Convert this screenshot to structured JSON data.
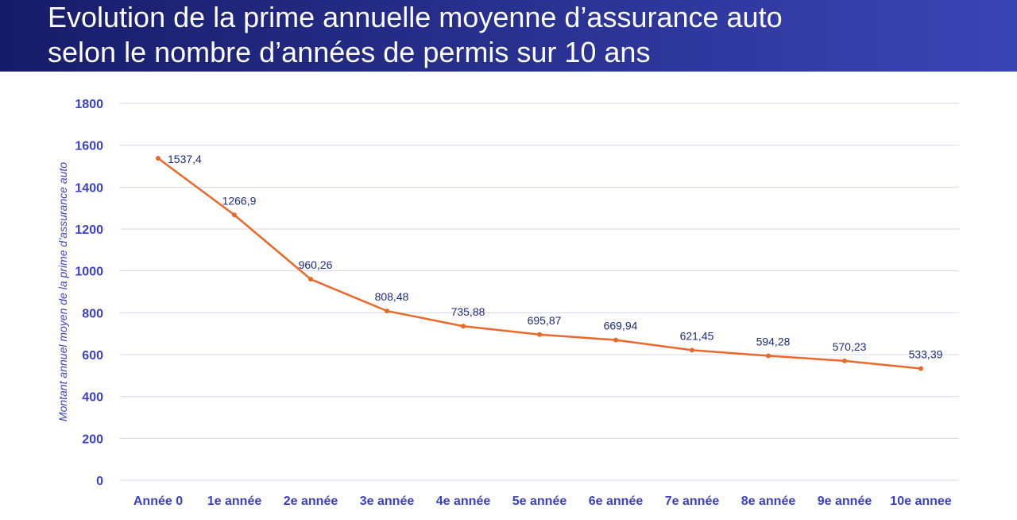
{
  "chart_data": {
    "type": "line",
    "title": [
      "Evolution de la prime annuelle moyenne d’assurance auto",
      "selon le nombre d’années de permis sur 10 ans"
    ],
    "y_label": "Montant annuel moyen de la prime d’assurance auto",
    "categories": [
      "Année 0",
      "1e année",
      "2e année",
      "3e année",
      "4e année",
      "5e année",
      "6e année",
      "7e année",
      "8e année",
      "9e année",
      "10e annee"
    ],
    "values": [
      1537.4,
      1266.9,
      960.26,
      808.48,
      735.88,
      695.87,
      669.94,
      621.45,
      594.28,
      570.23,
      533.39
    ],
    "value_labels": [
      "1537,4",
      "1266,9",
      "960,26",
      "808,48",
      "735,88",
      "695,87",
      "669,94",
      "621,45",
      "594,28",
      "570,23",
      "533,39"
    ],
    "color": "#e8692a",
    "ylim": [
      0,
      1800
    ],
    "yticks": [
      0,
      200,
      400,
      600,
      800,
      1000,
      1200,
      1400,
      1600,
      1800
    ],
    "grid": true
  }
}
